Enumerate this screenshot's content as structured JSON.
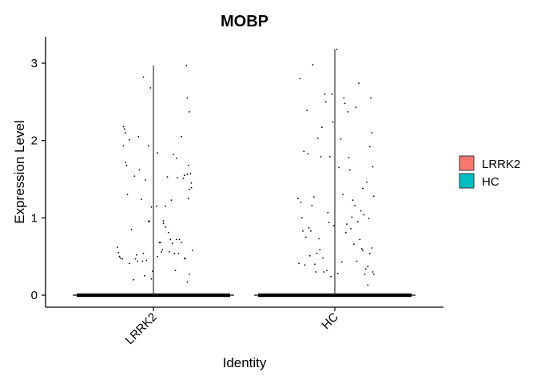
{
  "chart_data": {
    "type": "violin",
    "title": "MOBP",
    "xlabel": "Identity",
    "ylabel": "Expression Level",
    "categories": [
      "LRRK2",
      "HC"
    ],
    "yticks": [
      0,
      1,
      2,
      3
    ],
    "ylim": [
      -0.15,
      3.35
    ],
    "legend": {
      "placement": "right",
      "entries": [
        {
          "name": "LRRK2",
          "color": "#F8766D"
        },
        {
          "name": "HC",
          "color": "#00BFC4"
        }
      ]
    },
    "grid": false,
    "groups": [
      {
        "name": "LRRK2",
        "color": "#F8766D",
        "max": 2.97,
        "points": [
          [
            -0.36,
            0.62
          ],
          [
            -0.35,
            0.55
          ],
          [
            -0.34,
            0.5
          ],
          [
            -0.33,
            0.48
          ],
          [
            -0.31,
            0.47
          ],
          [
            -0.3,
            2.18
          ],
          [
            -0.29,
            2.15
          ],
          [
            -0.28,
            2.1
          ],
          [
            -0.3,
            1.93
          ],
          [
            -0.28,
            1.72
          ],
          [
            -0.27,
            1.68
          ],
          [
            -0.26,
            1.3
          ],
          [
            -0.24,
            0.41
          ],
          [
            -0.24,
            2.01
          ],
          [
            -0.22,
            0.85
          ],
          [
            -0.2,
            0.2
          ],
          [
            -0.19,
            1.54
          ],
          [
            -0.17,
            0.52
          ],
          [
            -0.18,
            0.47
          ],
          [
            -0.16,
            0.44
          ],
          [
            -0.15,
            2.05
          ],
          [
            -0.14,
            1.62
          ],
          [
            -0.12,
            1.24
          ],
          [
            -0.11,
            0.44
          ],
          [
            -0.1,
            0.54
          ],
          [
            -0.09,
            0.25
          ],
          [
            -0.1,
            2.82
          ],
          [
            -0.08,
            1.49
          ],
          [
            -0.07,
            0.45
          ],
          [
            -0.05,
            1.93
          ],
          [
            -0.05,
            0.95
          ],
          [
            -0.04,
            0.96
          ],
          [
            -0.03,
            2.68
          ],
          [
            -0.02,
            1.14
          ],
          [
            -0.01,
            0.31
          ],
          [
            -0.02,
            0.21
          ],
          [
            0.03,
            1.15
          ],
          [
            0.04,
            1.84
          ],
          [
            0.04,
            0.5
          ],
          [
            0.06,
            0.68
          ],
          [
            0.07,
            0.68
          ],
          [
            0.08,
            0.56
          ],
          [
            0.09,
            0.59
          ],
          [
            0.1,
            0.96
          ],
          [
            0.1,
            0.93
          ],
          [
            0.12,
            0.88
          ],
          [
            0.12,
            1.15
          ],
          [
            0.14,
            1.53
          ],
          [
            0.15,
            0.81
          ],
          [
            0.16,
            0.56
          ],
          [
            0.17,
            0.72
          ],
          [
            0.18,
            1.23
          ],
          [
            0.19,
            0.67
          ],
          [
            0.2,
            1.82
          ],
          [
            0.21,
            0.54
          ],
          [
            0.22,
            0.32
          ],
          [
            0.23,
            1.77
          ],
          [
            0.23,
            0.72
          ],
          [
            0.24,
            1.52
          ],
          [
            0.25,
            0.54
          ],
          [
            0.26,
            0.72
          ],
          [
            0.28,
            2.05
          ],
          [
            0.28,
            0.68
          ],
          [
            0.3,
            1.51
          ],
          [
            0.31,
            1.55
          ],
          [
            0.31,
            0.48
          ],
          [
            0.32,
            0.47
          ],
          [
            0.33,
            2.97
          ],
          [
            0.34,
            1.56
          ],
          [
            0.34,
            2.55
          ],
          [
            0.35,
            1.25
          ],
          [
            0.35,
            1.68
          ],
          [
            0.36,
            1.37
          ],
          [
            0.36,
            0.27
          ],
          [
            0.37,
            1.57
          ],
          [
            0.38,
            1.45
          ],
          [
            0.38,
            1.39
          ],
          [
            0.39,
            0.58
          ],
          [
            0.36,
            2.37
          ],
          [
            0.34,
            0.17
          ]
        ]
      },
      {
        "name": "HC",
        "color": "#00BFC4",
        "max": 3.18,
        "points": [
          [
            -0.37,
            1.25
          ],
          [
            -0.36,
            0.41
          ],
          [
            -0.35,
            2.8
          ],
          [
            -0.34,
            1.2
          ],
          [
            -0.33,
            1.0
          ],
          [
            -0.32,
            0.83
          ],
          [
            -0.31,
            1.86
          ],
          [
            -0.3,
            0.39
          ],
          [
            -0.29,
            0.75
          ],
          [
            -0.28,
            2.39
          ],
          [
            -0.27,
            1.83
          ],
          [
            -0.26,
            0.87
          ],
          [
            -0.25,
            0.51
          ],
          [
            -0.24,
            0.83
          ],
          [
            -0.23,
            1.16
          ],
          [
            -0.22,
            2.98
          ],
          [
            -0.21,
            1.27
          ],
          [
            -0.2,
            0.4
          ],
          [
            -0.19,
            0.3
          ],
          [
            -0.18,
            0.54
          ],
          [
            -0.17,
            2.03
          ],
          [
            -0.16,
            0.73
          ],
          [
            -0.15,
            0.59
          ],
          [
            -0.14,
            1.79
          ],
          [
            -0.13,
            2.17
          ],
          [
            -0.12,
            0.48
          ],
          [
            -0.11,
            0.3
          ],
          [
            -0.1,
            2.6
          ],
          [
            -0.09,
            2.5
          ],
          [
            -0.08,
            0.32
          ],
          [
            -0.07,
            1.07
          ],
          [
            -0.06,
            0.94
          ],
          [
            -0.05,
            1.79
          ],
          [
            -0.04,
            0.24
          ],
          [
            -0.03,
            2.6
          ],
          [
            -0.02,
            2.24
          ],
          [
            -0.01,
            0.9
          ],
          [
            0.02,
            3.18
          ],
          [
            0.03,
            0.28
          ],
          [
            0.04,
            1.65
          ],
          [
            0.06,
            2.02
          ],
          [
            0.07,
            0.43
          ],
          [
            0.08,
            1.3
          ],
          [
            0.09,
            2.55
          ],
          [
            0.1,
            2.48
          ],
          [
            0.11,
            0.81
          ],
          [
            0.12,
            0.92
          ],
          [
            0.13,
            2.37
          ],
          [
            0.14,
            1.78
          ],
          [
            0.15,
            1.62
          ],
          [
            0.16,
            0.86
          ],
          [
            0.17,
            1.01
          ],
          [
            0.18,
            1.23
          ],
          [
            0.19,
            0.66
          ],
          [
            0.2,
            1.16
          ],
          [
            0.21,
            2.43
          ],
          [
            0.22,
            0.44
          ],
          [
            0.23,
            0.95
          ],
          [
            0.24,
            2.74
          ],
          [
            0.25,
            0.72
          ],
          [
            0.26,
            1.09
          ],
          [
            0.27,
            0.6
          ],
          [
            0.28,
            1.38
          ],
          [
            0.29,
            1.04
          ],
          [
            0.3,
            0.27
          ],
          [
            0.31,
            0.34
          ],
          [
            0.32,
            1.46
          ],
          [
            0.33,
            0.37
          ],
          [
            0.34,
            0.99
          ],
          [
            0.35,
            0.54
          ],
          [
            0.36,
            2.55
          ],
          [
            0.37,
            0.61
          ],
          [
            0.38,
            1.66
          ],
          [
            0.38,
            0.3
          ],
          [
            0.39,
            1.28
          ],
          [
            0.39,
            0.27
          ],
          [
            0.37,
            2.1
          ],
          [
            0.33,
            0.13
          ],
          [
            0.28,
            0.58
          ],
          [
            0.35,
            1.92
          ]
        ]
      }
    ]
  }
}
